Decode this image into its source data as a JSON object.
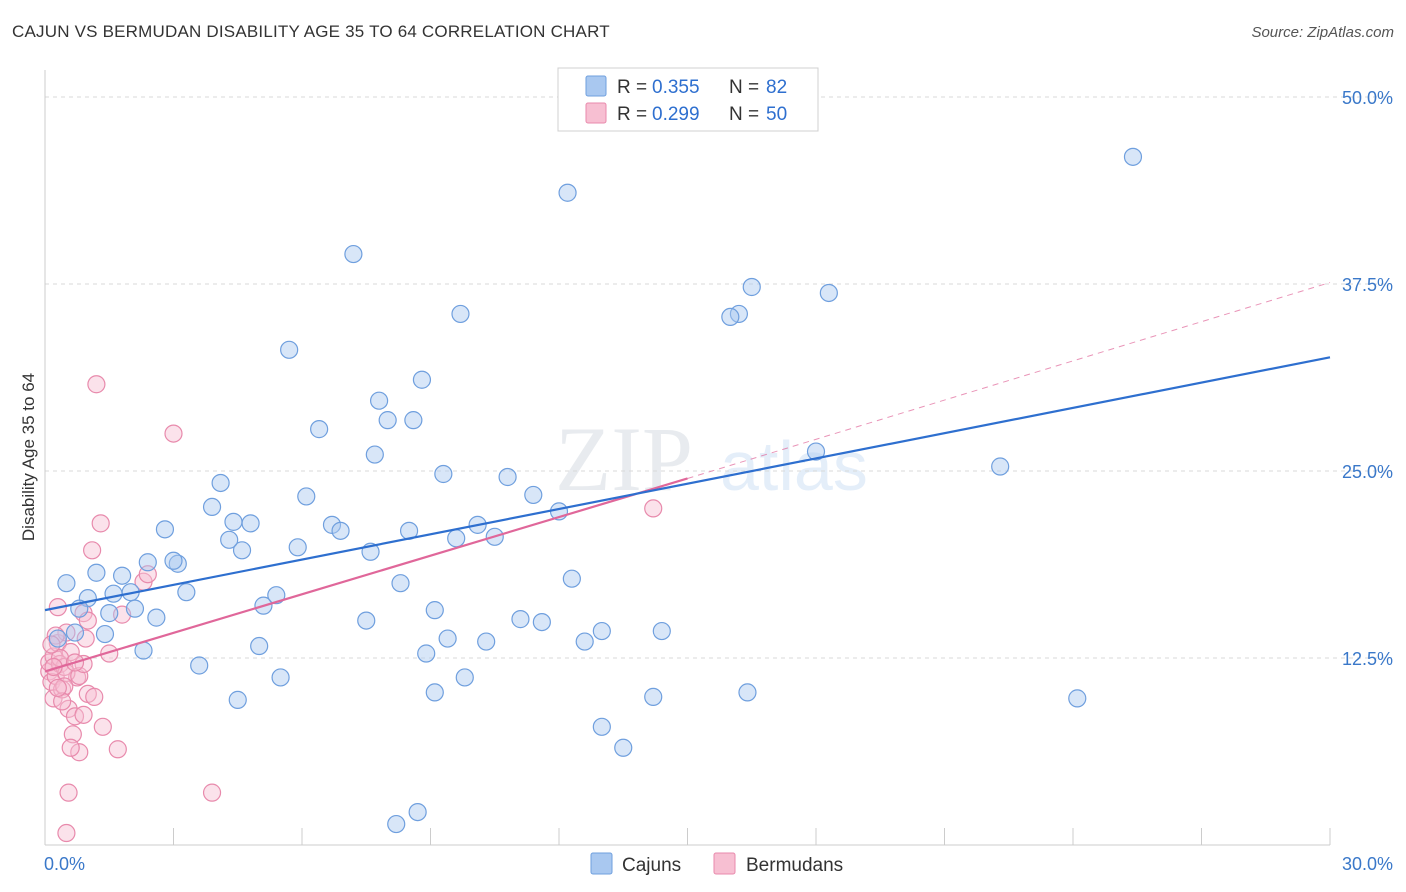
{
  "title": "CAJUN VS BERMUDAN DISABILITY AGE 35 TO 64 CORRELATION CHART",
  "source": "Source: ZipAtlas.com",
  "watermark": {
    "zip": "ZIP",
    "atlas": "atlas"
  },
  "legend_top": [
    {
      "r_label": "R = ",
      "r_value": "0.355",
      "n_label": "N = ",
      "n_value": "82",
      "color": "#8ab4e8"
    },
    {
      "r_label": "R = ",
      "r_value": "0.299",
      "n_label": "N = ",
      "n_value": "50",
      "color": "#f4a6bf"
    }
  ],
  "legend_bottom": [
    {
      "label": "Cajuns",
      "color": "#8ab4e8"
    },
    {
      "label": "Bermudans",
      "color": "#f4a6bf"
    }
  ],
  "colors": {
    "blue_line": "#2e6fcf",
    "pink_line": "#e0679a",
    "blue_fill": "#a9c8f0",
    "pink_fill": "#f7bfd2",
    "grid": "#d9d9d9",
    "tick_text": "#3a78c9"
  },
  "chart_data": {
    "type": "scatter",
    "title": "CAJUN VS BERMUDAN DISABILITY AGE 35 TO 64 CORRELATION CHART",
    "xlabel": "",
    "ylabel": "Disability Age 35 to 64",
    "xlim": [
      0,
      30
    ],
    "ylim": [
      0,
      50
    ],
    "x_tick_labels": [
      {
        "value": 0,
        "label": "0.0%"
      },
      {
        "value": 30,
        "label": "30.0%"
      }
    ],
    "y_tick_labels": [
      {
        "value": 12.5,
        "label": "12.5%"
      },
      {
        "value": 25,
        "label": "25.0%"
      },
      {
        "value": 37.5,
        "label": "37.5%"
      },
      {
        "value": 50,
        "label": "50.0%"
      }
    ],
    "grid": "horizontal dashed",
    "legend_placement": "top-center",
    "series": [
      {
        "name": "Cajuns",
        "color": "#8ab4e8",
        "r": 0.355,
        "n": 82,
        "trend": {
          "x0": 0.0,
          "y0": 15.7,
          "x1": 30.0,
          "y1": 32.6
        },
        "points": [
          [
            0.3,
            13.8
          ],
          [
            0.5,
            17.5
          ],
          [
            0.7,
            14.2
          ],
          [
            1.0,
            16.5
          ],
          [
            0.8,
            15.8
          ],
          [
            1.2,
            18.2
          ],
          [
            1.5,
            15.5
          ],
          [
            1.6,
            16.8
          ],
          [
            1.4,
            14.1
          ],
          [
            1.8,
            18.0
          ],
          [
            2.0,
            16.9
          ],
          [
            2.1,
            15.8
          ],
          [
            2.3,
            13.0
          ],
          [
            2.4,
            18.9
          ],
          [
            2.6,
            15.2
          ],
          [
            2.8,
            21.1
          ],
          [
            3.1,
            18.8
          ],
          [
            3.0,
            19.0
          ],
          [
            3.3,
            16.9
          ],
          [
            3.6,
            12.0
          ],
          [
            3.9,
            22.6
          ],
          [
            4.1,
            24.2
          ],
          [
            4.4,
            21.6
          ],
          [
            4.6,
            19.7
          ],
          [
            4.8,
            21.5
          ],
          [
            4.3,
            20.4
          ],
          [
            4.5,
            9.7
          ],
          [
            5.0,
            13.3
          ],
          [
            5.1,
            16.0
          ],
          [
            5.4,
            16.7
          ],
          [
            5.5,
            11.2
          ],
          [
            5.9,
            19.9
          ],
          [
            6.1,
            23.3
          ],
          [
            6.4,
            27.8
          ],
          [
            6.7,
            21.4
          ],
          [
            6.9,
            21.0
          ],
          [
            7.2,
            39.5
          ],
          [
            7.5,
            15.0
          ],
          [
            7.6,
            19.6
          ],
          [
            7.8,
            29.7
          ],
          [
            8.0,
            28.4
          ],
          [
            7.7,
            26.1
          ],
          [
            8.6,
            28.4
          ],
          [
            8.8,
            31.1
          ],
          [
            8.3,
            17.5
          ],
          [
            8.5,
            21.0
          ],
          [
            8.9,
            12.8
          ],
          [
            9.1,
            15.7
          ],
          [
            9.4,
            13.8
          ],
          [
            9.1,
            10.2
          ],
          [
            9.6,
            20.5
          ],
          [
            9.3,
            24.8
          ],
          [
            9.8,
            11.2
          ],
          [
            10.1,
            21.4
          ],
          [
            10.3,
            13.6
          ],
          [
            10.5,
            20.6
          ],
          [
            10.8,
            24.6
          ],
          [
            11.1,
            15.1
          ],
          [
            11.4,
            23.4
          ],
          [
            11.6,
            14.9
          ],
          [
            12.0,
            22.3
          ],
          [
            12.3,
            17.8
          ],
          [
            12.2,
            43.6
          ],
          [
            12.6,
            13.6
          ],
          [
            13.0,
            14.3
          ],
          [
            13.0,
            7.9
          ],
          [
            13.5,
            6.5
          ],
          [
            14.2,
            9.9
          ],
          [
            14.4,
            14.3
          ],
          [
            16.5,
            37.3
          ],
          [
            16.2,
            35.5
          ],
          [
            16.0,
            35.3
          ],
          [
            16.4,
            10.2
          ],
          [
            18.0,
            26.3
          ],
          [
            18.3,
            36.9
          ],
          [
            22.3,
            25.3
          ],
          [
            24.1,
            9.8
          ],
          [
            25.4,
            46.0
          ],
          [
            8.2,
            1.4
          ],
          [
            8.7,
            2.2
          ],
          [
            5.7,
            33.1
          ],
          [
            9.7,
            35.5
          ]
        ]
      },
      {
        "name": "Bermudans",
        "color": "#f4a6bf",
        "r": 0.299,
        "n": 50,
        "trend": {
          "x0": 0.0,
          "y0": 11.6,
          "x1": 15.0,
          "y1": 24.5
        },
        "trend_extension": {
          "x0": 15.0,
          "y0": 24.5,
          "x1": 30.0,
          "y1": 37.6
        },
        "points": [
          [
            0.1,
            11.6
          ],
          [
            0.1,
            12.2
          ],
          [
            0.15,
            10.9
          ],
          [
            0.2,
            12.6
          ],
          [
            0.2,
            9.8
          ],
          [
            0.25,
            11.3
          ],
          [
            0.3,
            13.5
          ],
          [
            0.3,
            15.9
          ],
          [
            0.35,
            12.1
          ],
          [
            0.4,
            10.4
          ],
          [
            0.45,
            11.9
          ],
          [
            0.5,
            14.2
          ],
          [
            0.55,
            9.1
          ],
          [
            0.6,
            12.9
          ],
          [
            0.65,
            7.4
          ],
          [
            0.7,
            8.6
          ],
          [
            0.75,
            11.2
          ],
          [
            0.8,
            6.2
          ],
          [
            0.9,
            15.5
          ],
          [
            0.95,
            13.8
          ],
          [
            1.0,
            10.1
          ],
          [
            1.1,
            19.7
          ],
          [
            1.2,
            30.8
          ],
          [
            1.3,
            21.5
          ],
          [
            1.35,
            7.9
          ],
          [
            1.5,
            12.8
          ],
          [
            1.7,
            6.4
          ],
          [
            1.8,
            15.4
          ],
          [
            2.3,
            17.6
          ],
          [
            2.4,
            18.1
          ],
          [
            3.0,
            27.5
          ],
          [
            3.9,
            3.5
          ],
          [
            1.0,
            15.0
          ],
          [
            0.5,
            11.5
          ],
          [
            0.45,
            10.6
          ],
          [
            0.25,
            14.0
          ],
          [
            0.55,
            3.5
          ],
          [
            0.6,
            6.5
          ],
          [
            0.8,
            11.3
          ],
          [
            0.9,
            12.1
          ],
          [
            1.15,
            9.9
          ],
          [
            0.35,
            12.5
          ],
          [
            0.15,
            13.4
          ],
          [
            0.2,
            11.9
          ],
          [
            14.2,
            22.5
          ],
          [
            0.4,
            9.6
          ],
          [
            0.3,
            10.5
          ],
          [
            0.7,
            12.2
          ],
          [
            0.9,
            8.7
          ],
          [
            0.5,
            0.8
          ]
        ]
      }
    ]
  }
}
